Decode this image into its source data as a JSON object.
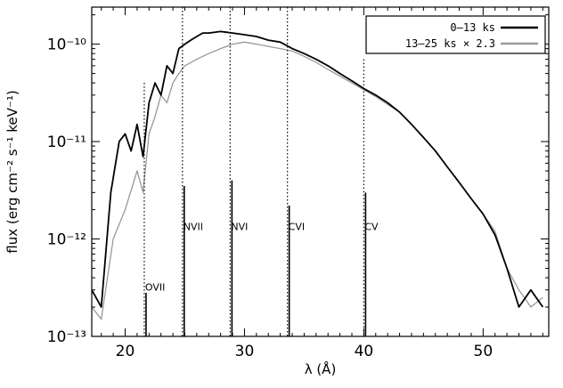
{
  "chart_data": {
    "type": "line",
    "xlabel": "λ (Å)",
    "ylabel": "flux (erg cm⁻² s⁻¹ keV⁻¹)",
    "xlim": [
      17.2,
      55.5
    ],
    "ylim": [
      1e-13,
      2.4e-10
    ],
    "yscale": "log",
    "grid": false,
    "legend_position": "top-right",
    "x_ticks": [
      20,
      30,
      40,
      50
    ],
    "y_ticks": [
      {
        "value": 1e-13,
        "label": "10⁻¹³"
      },
      {
        "value": 1e-12,
        "label": "10⁻¹²"
      },
      {
        "value": 1e-11,
        "label": "10⁻¹¹"
      },
      {
        "value": 1e-10,
        "label": "10⁻¹⁰"
      }
    ],
    "series": [
      {
        "name": "0–13 ks",
        "color": "#000000",
        "x": [
          17.2,
          18.0,
          18.8,
          19.5,
          20.0,
          20.5,
          21.0,
          21.5,
          22.0,
          22.5,
          23.0,
          23.5,
          24.0,
          24.5,
          25.0,
          25.5,
          26.0,
          26.5,
          27.0,
          28.0,
          29.0,
          30.0,
          31.0,
          32.0,
          33.0,
          34.0,
          35.0,
          36.0,
          37.0,
          38.0,
          39.0,
          40.0,
          41.0,
          42.0,
          43.0,
          44.0,
          45.0,
          46.0,
          47.0,
          48.0,
          49.0,
          50.0,
          51.0,
          52.0,
          53.0,
          54.0,
          55.0
        ],
        "y": [
          3e-13,
          2e-13,
          3e-12,
          1e-11,
          1.2e-11,
          8e-12,
          1.5e-11,
          7e-12,
          2.5e-11,
          4e-11,
          3e-11,
          6e-11,
          5e-11,
          9e-11,
          1e-10,
          1.1e-10,
          1.2e-10,
          1.3e-10,
          1.3e-10,
          1.35e-10,
          1.3e-10,
          1.25e-10,
          1.2e-10,
          1.1e-10,
          1.05e-10,
          9e-11,
          8e-11,
          7e-11,
          6e-11,
          5e-11,
          4.2e-11,
          3.5e-11,
          3e-11,
          2.5e-11,
          2e-11,
          1.5e-11,
          1.1e-11,
          8e-12,
          5.5e-12,
          3.8e-12,
          2.6e-12,
          1.8e-12,
          1.1e-12,
          5e-13,
          2e-13,
          3e-13,
          2e-13
        ]
      },
      {
        "name": "13–25 ks × 2.3",
        "color": "#999999",
        "x": [
          17.2,
          18.0,
          19.0,
          20.0,
          21.0,
          21.5,
          22.0,
          22.5,
          23.0,
          23.5,
          24.0,
          24.5,
          25.0,
          26.0,
          27.0,
          28.0,
          29.0,
          30.0,
          31.0,
          32.0,
          33.0,
          34.0,
          35.0,
          36.0,
          37.0,
          38.0,
          39.0,
          40.0,
          41.0,
          42.0,
          43.0,
          44.0,
          45.0,
          46.0,
          47.0,
          48.0,
          49.0,
          50.0,
          51.0,
          52.0,
          53.0,
          54.0,
          55.0
        ],
        "y": [
          2e-13,
          1.5e-13,
          1e-12,
          2e-12,
          5e-12,
          3e-12,
          1.2e-11,
          1.8e-11,
          3e-11,
          2.5e-11,
          4e-11,
          5e-11,
          6e-11,
          7e-11,
          8e-11,
          9e-11,
          1e-10,
          1.05e-10,
          1e-10,
          9.5e-11,
          9e-11,
          8.5e-11,
          7.5e-11,
          6.5e-11,
          5.5e-11,
          4.7e-11,
          4e-11,
          3.4e-11,
          2.9e-11,
          2.4e-11,
          2e-11,
          1.5e-11,
          1.1e-11,
          8e-12,
          5.5e-12,
          3.8e-12,
          2.6e-12,
          1.8e-12,
          1.2e-12,
          5e-13,
          3e-13,
          2e-13,
          2.5e-13
        ]
      }
    ],
    "edge_lines": [
      {
        "x": 21.6,
        "label": "OVII",
        "top": 4e-11,
        "label_at": 3.2e-13,
        "bar_top": 2.8e-13
      },
      {
        "x": 24.8,
        "label": "NVII",
        "top": 2.4e-10,
        "label_at": 1.35e-12,
        "bar_top": 3.5e-12
      },
      {
        "x": 28.8,
        "label": "NVI",
        "top": 2.4e-10,
        "label_at": 1.35e-12,
        "bar_top": 4e-12
      },
      {
        "x": 33.6,
        "label": "CVI",
        "top": 2.4e-10,
        "label_at": 1.35e-12,
        "bar_top": 2.2e-12
      },
      {
        "x": 40.0,
        "label": "CV",
        "top": 7e-11,
        "label_at": 1.35e-12,
        "bar_top": 3e-12
      }
    ]
  }
}
